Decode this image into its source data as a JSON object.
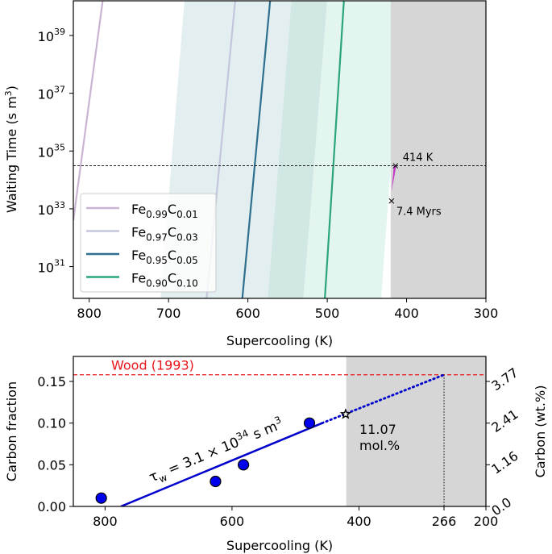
{
  "chart_data": [
    {
      "type": "line",
      "panel": "top",
      "xlabel": "Supercooling (K)",
      "ylabel": "Waiting Time (s m³)",
      "ylabel_base": "Waiting Time (s m",
      "ylabel_sup": "3",
      "ylabel_end": ")",
      "xlim": [
        820,
        300
      ],
      "ylim_log10": [
        29.9,
        40.2
      ],
      "yscale": "log",
      "x_ticks": [
        800,
        700,
        600,
        500,
        400,
        300
      ],
      "x_tick_labels": [
        "800",
        "700",
        "600",
        "500",
        "400",
        "300"
      ],
      "y_ticks_log10": [
        31,
        33,
        35,
        37,
        39
      ],
      "y_tick_base": "10",
      "y_tick_exponents": [
        "31",
        "33",
        "35",
        "37",
        "39"
      ],
      "legend_location": "lower-left",
      "series": [
        {
          "name": "Fe0.99C0.01",
          "fe": "0.99",
          "c": "0.01",
          "color": "#c9b4d4",
          "x": [
            820,
            783
          ],
          "y_log10": [
            32.6,
            40.2
          ],
          "band": null
        },
        {
          "name": "Fe0.97C0.03",
          "fe": "0.97",
          "c": "0.03",
          "color": "#c4c6dc",
          "x": [
            652,
            616
          ],
          "y_log10": [
            29.9,
            40.2
          ],
          "band": {
            "color": "#e3eef0",
            "x_low": [
              710,
              680
            ],
            "x_high": [
              575,
              545
            ]
          }
        },
        {
          "name": "Fe0.95C0.05",
          "fe": "0.95",
          "c": "0.05",
          "color": "#2f6f8e",
          "x": [
            607,
            572
          ],
          "y_log10": [
            29.9,
            40.2
          ],
          "band": {
            "color": "#d1e7e4",
            "x_low": [
              575,
              545
            ],
            "x_high": [
              530,
              500
            ]
          }
        },
        {
          "name": "Fe0.90C0.10",
          "fe": "0.90",
          "c": "0.10",
          "color": "#2aa57f",
          "x": [
            503,
            479
          ],
          "y_log10": [
            29.9,
            40.2
          ],
          "band": {
            "color": "#e3f5ef",
            "x_low": [
              530,
              500
            ],
            "x_high": [
              432,
              405
            ]
          }
        }
      ],
      "shaded_region": {
        "x_from": 420,
        "x_to": 300,
        "color": "#d6d6d6"
      },
      "threshold_line": {
        "y_log10": 34.49,
        "style": "dashed",
        "color": "#000000"
      },
      "annotations": [
        {
          "label": "414 K",
          "x": 414,
          "y_log10": 34.49,
          "marker": "x"
        },
        {
          "label": "7.4 Myrs",
          "x": 419,
          "y_log10": 33.27,
          "marker": "x"
        }
      ],
      "wedge": {
        "color": "#c236c8",
        "points": [
          [
            416,
            34.49
          ],
          [
            413,
            34.49
          ],
          [
            419,
            33.6
          ]
        ]
      }
    },
    {
      "type": "scatter",
      "panel": "bottom",
      "xlabel": "Supercooling (K)",
      "ylabel": "Carbon fraction",
      "ylabel_right": "Carbon (wt.%)",
      "xlim": [
        850,
        200
      ],
      "ylim": [
        0,
        0.18
      ],
      "x_ticks": [
        800,
        600,
        400,
        266,
        200
      ],
      "x_tick_labels": [
        "800",
        "600",
        "400",
        "266",
        "200"
      ],
      "y_ticks": [
        0,
        0.05,
        0.1,
        0.15
      ],
      "y_tick_labels": [
        "0.00",
        "0.05",
        "0.10",
        "0.15"
      ],
      "y_ticks_right": [
        0,
        0.05,
        0.1,
        0.15
      ],
      "y_tick_labels_right": [
        "0.0",
        "1.16",
        "2.41",
        "3.77"
      ],
      "points": {
        "x": [
          806,
          626,
          582,
          478
        ],
        "y": [
          0.01,
          0.03,
          0.05,
          0.1
        ],
        "color": "#0000ee"
      },
      "fit_line": {
        "x": [
          775,
          458
        ],
        "y": [
          0,
          0.1
        ],
        "color": "#0000cc",
        "style": "solid"
      },
      "extrapolation": {
        "x": [
          458,
          266
        ],
        "y": [
          0.1,
          0.158
        ],
        "color": "#0000cc",
        "style": "dotted"
      },
      "star_point": {
        "x": 421,
        "y": 0.1107
      },
      "reference_line": {
        "label": "Wood (1993)",
        "y": 0.158,
        "color": "#e8161b",
        "style": "dashed"
      },
      "vertical_marker": {
        "x": 266,
        "style": "dotted"
      },
      "shaded_region": {
        "x_from": 420,
        "x_to": 200,
        "color": "#d6d6d6"
      },
      "annotations": [
        {
          "label_line1": "11.07",
          "label_line2": "mol.%"
        },
        {
          "label_prefix": "τ",
          "label_sub": "w",
          "label_main": " = 3.1 × 10",
          "label_sup": "34",
          "label_unit": " s m",
          "label_unit_sup": "3"
        }
      ]
    }
  ]
}
